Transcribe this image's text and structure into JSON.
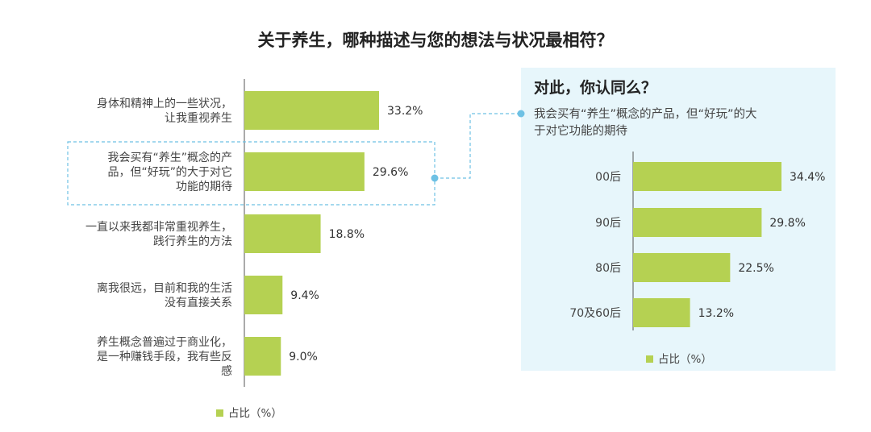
{
  "title": "关于养生，哪种描述与您的想法与状况最相符？",
  "colors": {
    "bar": "#b5d152",
    "highlight_border": "#6ec1e4",
    "inset_bg": "#e7f6fb",
    "axis": "#555555"
  },
  "chart_data": [
    {
      "type": "bar",
      "orientation": "horizontal",
      "categories": [
        [
          "身体和精神上的一些状况，",
          "让我重视养生"
        ],
        [
          "我会买有“养生”概念的产",
          "品，但“好玩”的大于对它",
          "功能的期待"
        ],
        [
          "一直以来我都非常重视养生，",
          "践行养生的方法"
        ],
        [
          "离我很远，目前和我的生活",
          "没有直接关系"
        ],
        [
          "养生概念普遍过于商业化，",
          "是一种赚钱手段，我有些反",
          "感"
        ]
      ],
      "values": [
        33.2,
        29.6,
        18.8,
        9.4,
        9.0
      ],
      "value_labels": [
        "33.2%",
        "29.6%",
        "18.8%",
        "9.4%",
        "9.0%"
      ],
      "highlight_index": 1,
      "legend": "占比（%）",
      "xlim": [
        0,
        50
      ]
    },
    {
      "type": "bar",
      "orientation": "horizontal",
      "title": "对此，你认同么？",
      "subtitle": [
        "我会买有“养生”概念的产品，但“好玩”的大",
        "于对它功能的期待"
      ],
      "categories": [
        "00后",
        "90后",
        "80后",
        "70及60后"
      ],
      "values": [
        34.4,
        29.8,
        22.5,
        13.2
      ],
      "value_labels": [
        "34.4%",
        "29.8%",
        "22.5%",
        "13.2%"
      ],
      "legend": "占比（%）",
      "xlim": [
        0,
        50
      ]
    }
  ]
}
